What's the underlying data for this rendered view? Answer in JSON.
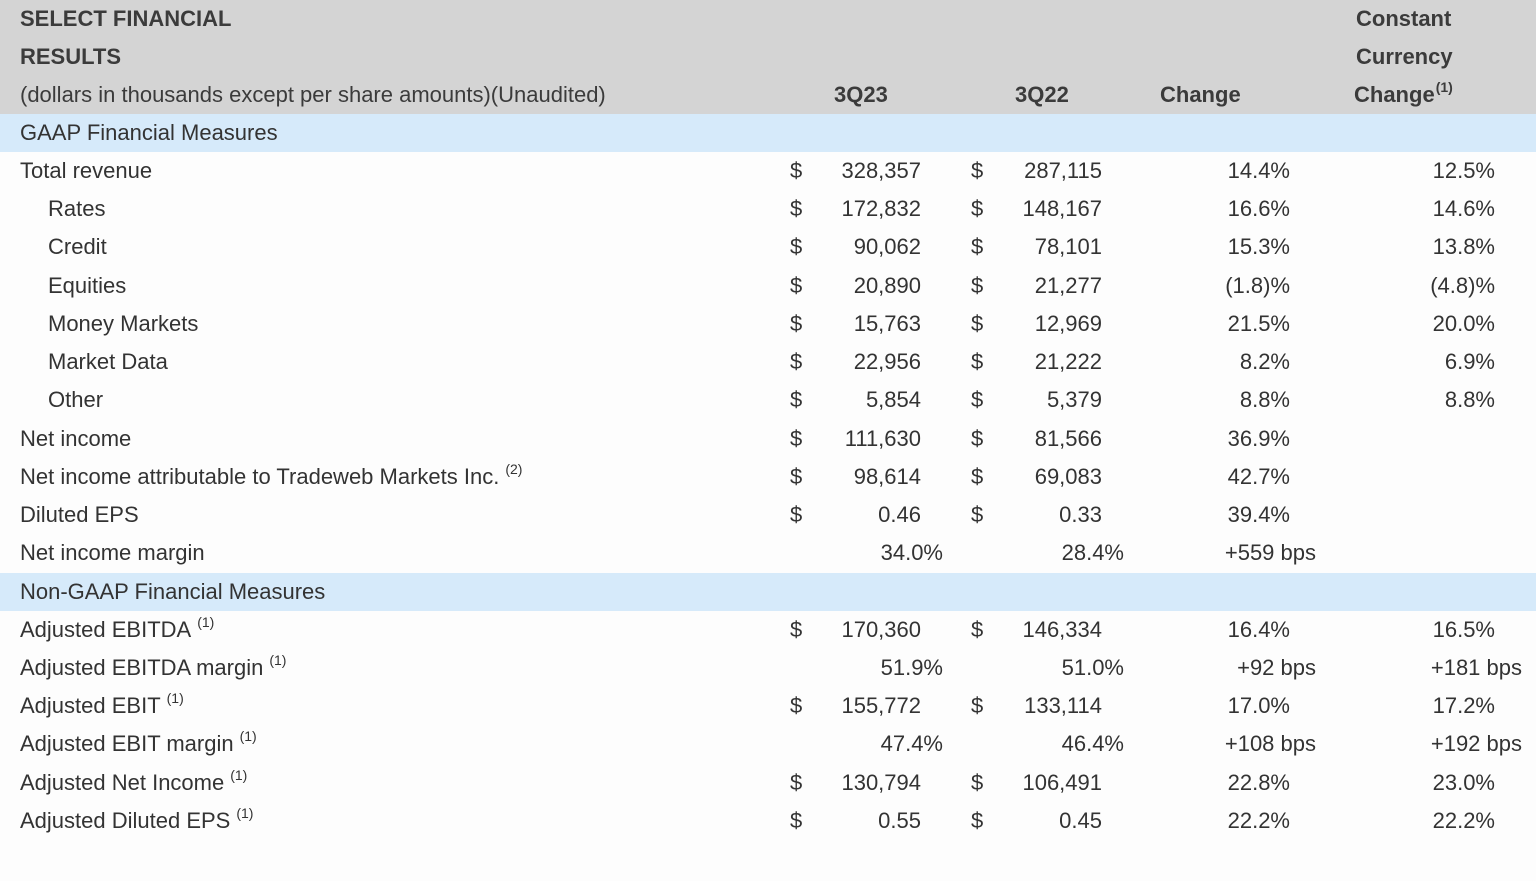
{
  "header": {
    "title_line1": "SELECT FINANCIAL",
    "title_line2": "RESULTS",
    "subtitle": "(dollars in thousands except per share amounts)(Unaudited)",
    "col_3q23": "3Q23",
    "col_3q22": "3Q22",
    "col_change": "Change",
    "col_cc_line1": "Constant",
    "col_cc_line2": "Currency",
    "col_cc_line3": "Change",
    "col_cc_note": "(1)"
  },
  "sections": {
    "gaap": "GAAP Financial Measures",
    "non_gaap": "Non-GAAP Financial Measures"
  },
  "currency_symbol": "$",
  "gaap_rows": [
    {
      "label": "Total revenue",
      "note": "",
      "v1": "328,357",
      "v2": "287,115",
      "change": "14.4%",
      "cc": "12.5%"
    },
    {
      "label": "Rates",
      "note": "",
      "v1": "172,832",
      "v2": "148,167",
      "change": "16.6%",
      "cc": "14.6%"
    },
    {
      "label": "Credit",
      "note": "",
      "v1": "90,062",
      "v2": "78,101",
      "change": "15.3%",
      "cc": "13.8%"
    },
    {
      "label": "Equities",
      "note": "",
      "v1": "20,890",
      "v2": "21,277",
      "change": "(1.8)%",
      "cc": "(4.8)%"
    },
    {
      "label": "Money Markets",
      "note": "",
      "v1": "15,763",
      "v2": "12,969",
      "change": "21.5%",
      "cc": "20.0%"
    },
    {
      "label": "Market Data",
      "note": "",
      "v1": "22,956",
      "v2": "21,222",
      "change": "8.2%",
      "cc": "6.9%"
    },
    {
      "label": "Other",
      "note": "",
      "v1": "5,854",
      "v2": "5,379",
      "change": "8.8%",
      "cc": "8.8%"
    },
    {
      "label": "Net income",
      "note": "",
      "v1": "111,630",
      "v2": "81,566",
      "change": "36.9%",
      "cc": ""
    },
    {
      "label": "Net income attributable to Tradeweb Markets Inc.",
      "note": "(2)",
      "v1": "98,614",
      "v2": "69,083",
      "change": "42.7%",
      "cc": ""
    },
    {
      "label": "Diluted EPS",
      "note": "",
      "v1": "0.46",
      "v2": "0.33",
      "change": "39.4%",
      "cc": ""
    },
    {
      "label": "Net income margin",
      "note": "",
      "v1": "34.0%",
      "v2": "28.4%",
      "change": "+559 bps",
      "cc": ""
    }
  ],
  "non_gaap_rows": [
    {
      "label": "Adjusted EBITDA",
      "note": "(1)",
      "v1": "170,360",
      "v2": "146,334",
      "change": "16.4%",
      "cc": "16.5%"
    },
    {
      "label": "Adjusted EBITDA margin",
      "note": "(1)",
      "v1": "51.9%",
      "v2": "51.0%",
      "change": "+92 bps",
      "cc": "+181 bps"
    },
    {
      "label": "Adjusted EBIT",
      "note": "(1)",
      "v1": "155,772",
      "v2": "133,114",
      "change": "17.0%",
      "cc": "17.2%"
    },
    {
      "label": "Adjusted EBIT margin",
      "note": "(1)",
      "v1": "47.4%",
      "v2": "46.4%",
      "change": "+108 bps",
      "cc": "+192 bps"
    },
    {
      "label": "Adjusted Net Income",
      "note": "(1)",
      "v1": "130,794",
      "v2": "106,491",
      "change": "22.8%",
      "cc": "23.0%"
    },
    {
      "label": "Adjusted Diluted EPS",
      "note": "(1)",
      "v1": "0.55",
      "v2": "0.45",
      "change": "22.2%",
      "cc": "22.2%"
    }
  ]
}
